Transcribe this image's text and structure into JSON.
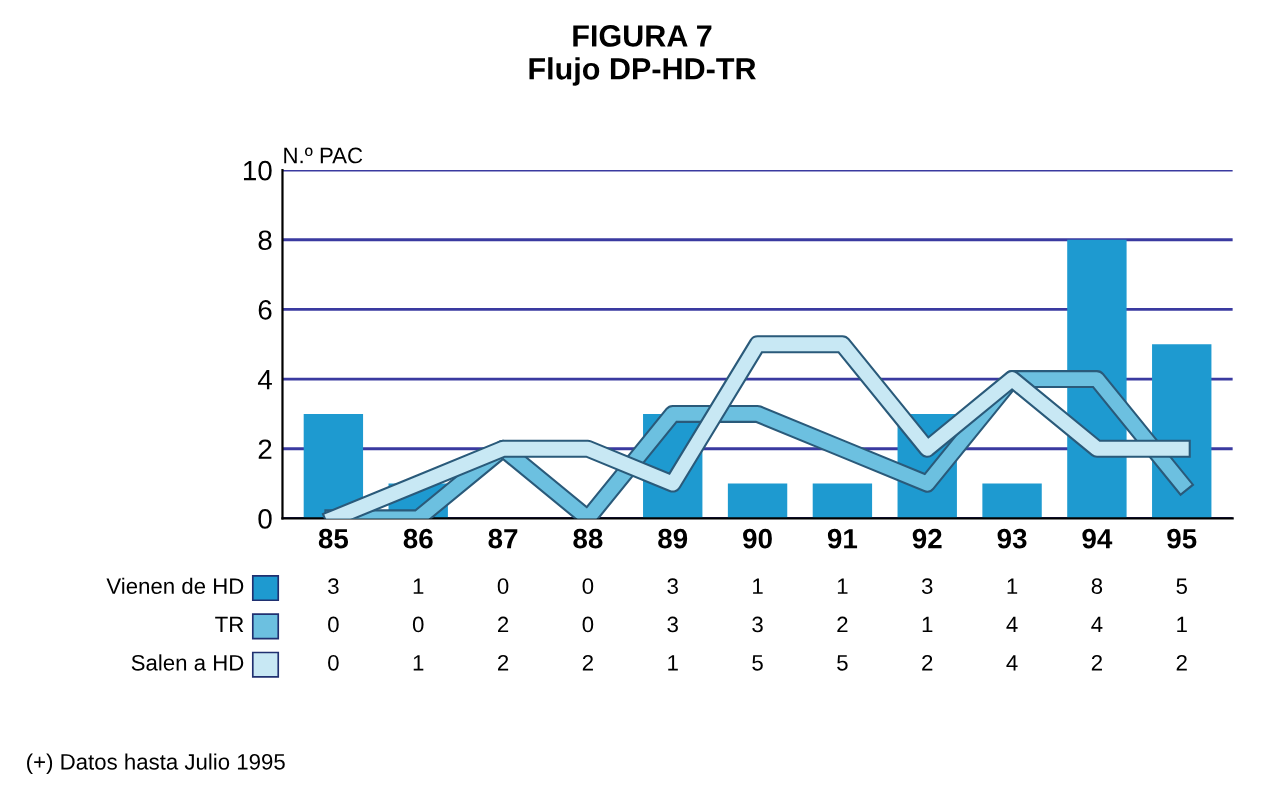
{
  "chart_data": {
    "type": "bar",
    "title": "FIGURA 7\nFlujo DP-HD-TR",
    "ylabel": "N.º PAC",
    "categories": [
      "85",
      "86",
      "87",
      "88",
      "89",
      "90",
      "91",
      "92",
      "93",
      "94",
      "95"
    ],
    "series": [
      {
        "name": "Vienen de HD",
        "color": "#1e9ad0",
        "values": [
          3,
          1,
          0,
          0,
          3,
          1,
          1,
          3,
          1,
          8,
          5
        ]
      },
      {
        "name": "TR",
        "type": "line",
        "color": "#6cc0e0",
        "values": [
          0,
          0,
          2,
          0,
          3,
          3,
          2,
          1,
          4,
          4,
          1
        ]
      },
      {
        "name": "Salen a HD",
        "type": "line",
        "color": "#c8e8f4",
        "values": [
          0,
          1,
          2,
          2,
          1,
          5,
          5,
          2,
          4,
          2,
          2
        ]
      }
    ],
    "ylim": [
      0,
      10
    ],
    "yticks": [
      0,
      2,
      4,
      6,
      8,
      10
    ],
    "grid": "y",
    "data_labels": true,
    "legend": "bottom",
    "annotations": [
      "(+) Datos hasta Julio 1995"
    ]
  }
}
